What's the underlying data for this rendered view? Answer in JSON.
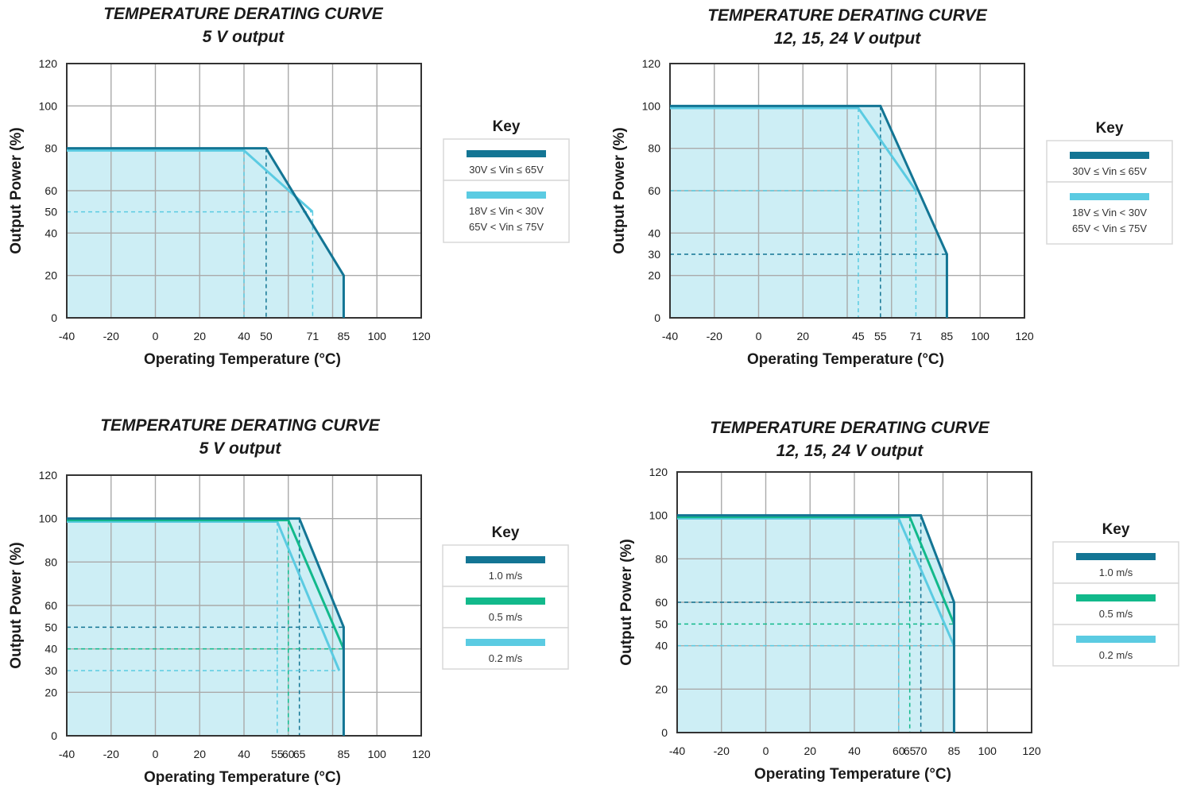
{
  "colors": {
    "fill": "#cdeef5",
    "grid": "#aaaaaa",
    "frame": "#333333",
    "key_border": "#d8d8d8"
  },
  "chart_data": [
    {
      "type": "line",
      "title": [
        "TEMPERATURE DERATING CURVE",
        "5 V output"
      ],
      "xlabel": "Operating Temperature (°C)",
      "ylabel": "Output Power (%)",
      "xlim": [
        -40,
        120
      ],
      "ylim": [
        0,
        120
      ],
      "grid": true,
      "legend_title": "Key",
      "legend_position": "right",
      "xticks": [
        "-40",
        "-20",
        "0",
        "20",
        "40",
        "50",
        "71",
        "85",
        "100",
        "120"
      ],
      "yticks": [
        "0",
        "20",
        "40",
        "50",
        "60",
        "80",
        "100",
        "120"
      ],
      "series": [
        {
          "name": "30V ≤ Vin ≤ 65V",
          "legend_lines": [
            "30V ≤ Vin ≤ 65V"
          ],
          "color": "#137594",
          "points": [
            [
              -40,
              80
            ],
            [
              50,
              80
            ],
            [
              85,
              20
            ],
            [
              85,
              0
            ]
          ],
          "guides": [
            [
              [
                50,
                80
              ],
              [
                50,
                0
              ]
            ]
          ]
        },
        {
          "name": "18V ≤ Vin < 30V / 65V < Vin ≤ 75V",
          "legend_lines": [
            "18V ≤ Vin < 30V",
            "65V < Vin ≤ 75V"
          ],
          "color": "#5bcbe2",
          "points": [
            [
              -40,
              79
            ],
            [
              40,
              79
            ],
            [
              71,
              50
            ]
          ],
          "guides": [
            [
              [
                40,
                79
              ],
              [
                40,
                0
              ]
            ],
            [
              [
                -40,
                50
              ],
              [
                71,
                50
              ]
            ],
            [
              [
                71,
                50
              ],
              [
                71,
                0
              ]
            ]
          ]
        }
      ]
    },
    {
      "type": "line",
      "title": [
        "TEMPERATURE DERATING CURVE",
        "12, 15, 24 V output"
      ],
      "xlabel": "Operating Temperature (°C)",
      "ylabel": "Output Power (%)",
      "xlim": [
        -40,
        120
      ],
      "ylim": [
        0,
        120
      ],
      "grid": true,
      "legend_title": "Key",
      "legend_position": "right",
      "xticks": [
        "-40",
        "-20",
        "0",
        "20",
        "45",
        "55",
        "71",
        "85",
        "100",
        "120"
      ],
      "yticks": [
        "0",
        "20",
        "30",
        "40",
        "60",
        "80",
        "100",
        "120"
      ],
      "series": [
        {
          "name": "30V ≤ Vin ≤ 65V",
          "legend_lines": [
            "30V ≤ Vin ≤ 65V"
          ],
          "color": "#137594",
          "points": [
            [
              -40,
              100
            ],
            [
              55,
              100
            ],
            [
              85,
              30
            ],
            [
              85,
              0
            ]
          ],
          "guides": [
            [
              [
                55,
                100
              ],
              [
                55,
                0
              ]
            ],
            [
              [
                -40,
                30
              ],
              [
                85,
                30
              ]
            ]
          ]
        },
        {
          "name": "18V ≤ Vin < 30V / 65V < Vin ≤ 75V",
          "legend_lines": [
            "18V ≤ Vin < 30V",
            "65V < Vin ≤ 75V"
          ],
          "color": "#5bcbe2",
          "points": [
            [
              -40,
              99
            ],
            [
              45,
              99
            ],
            [
              71,
              60
            ]
          ],
          "guides": [
            [
              [
                45,
                99
              ],
              [
                45,
                0
              ]
            ],
            [
              [
                -40,
                60
              ],
              [
                71,
                60
              ]
            ],
            [
              [
                71,
                60
              ],
              [
                71,
                0
              ]
            ]
          ]
        }
      ]
    },
    {
      "type": "line",
      "title": [
        "TEMPERATURE DERATING CURVE",
        "5 V output"
      ],
      "xlabel": "Operating Temperature (°C)",
      "ylabel": "Output Power (%)",
      "xlim": [
        -40,
        120
      ],
      "ylim": [
        0,
        120
      ],
      "grid": true,
      "legend_title": "Key",
      "legend_position": "right",
      "xticks": [
        "-40",
        "-20",
        "0",
        "20",
        "40",
        "55",
        "60",
        "65",
        "85",
        "100",
        "120"
      ],
      "yticks": [
        "0",
        "20",
        "30",
        "40",
        "50",
        "60",
        "80",
        "100",
        "120"
      ],
      "series": [
        {
          "name": "1.0 m/s",
          "legend_lines": [
            "1.0 m/s"
          ],
          "color": "#137594",
          "points": [
            [
              -40,
              100
            ],
            [
              65,
              100
            ],
            [
              85,
              50
            ],
            [
              85,
              0
            ]
          ],
          "guides": [
            [
              [
                65,
                100
              ],
              [
                65,
                0
              ]
            ],
            [
              [
                -40,
                50
              ],
              [
                85,
                50
              ]
            ]
          ]
        },
        {
          "name": "0.5 m/s",
          "legend_lines": [
            "0.5 m/s"
          ],
          "color": "#12b98b",
          "points": [
            [
              -40,
              99.3
            ],
            [
              60,
              99.3
            ],
            [
              85,
              40
            ]
          ],
          "guides": [
            [
              [
                60,
                99.3
              ],
              [
                60,
                0
              ]
            ],
            [
              [
                -40,
                40
              ],
              [
                85,
                40
              ]
            ]
          ]
        },
        {
          "name": "0.2 m/s",
          "legend_lines": [
            "0.2 m/s"
          ],
          "color": "#5bcbe2",
          "points": [
            [
              -40,
              98.6
            ],
            [
              55,
              98.6
            ],
            [
              83,
              30
            ]
          ],
          "guides": [
            [
              [
                55,
                98.6
              ],
              [
                55,
                0
              ]
            ],
            [
              [
                -40,
                30
              ],
              [
                83,
                30
              ]
            ]
          ]
        }
      ]
    },
    {
      "type": "line",
      "title": [
        "TEMPERATURE DERATING CURVE",
        "12, 15, 24 V output"
      ],
      "xlabel": "Operating Temperature (°C)",
      "ylabel": "Output Power (%)",
      "xlim": [
        -40,
        120
      ],
      "ylim": [
        0,
        120
      ],
      "grid": true,
      "legend_title": "Key",
      "legend_position": "right",
      "xticks": [
        "-40",
        "-20",
        "0",
        "20",
        "40",
        "60",
        "65",
        "70",
        "85",
        "100",
        "120"
      ],
      "yticks": [
        "0",
        "20",
        "40",
        "50",
        "60",
        "80",
        "100",
        "120"
      ],
      "series": [
        {
          "name": "1.0 m/s",
          "legend_lines": [
            "1.0 m/s"
          ],
          "color": "#137594",
          "points": [
            [
              -40,
              100
            ],
            [
              70,
              100
            ],
            [
              85,
              60
            ],
            [
              85,
              0
            ]
          ],
          "guides": [
            [
              [
                70,
                100
              ],
              [
                70,
                0
              ]
            ],
            [
              [
                -40,
                60
              ],
              [
                85,
                60
              ]
            ]
          ]
        },
        {
          "name": "0.5 m/s",
          "legend_lines": [
            "0.5 m/s"
          ],
          "color": "#12b98b",
          "points": [
            [
              -40,
              99.3
            ],
            [
              65,
              99.3
            ],
            [
              85,
              50
            ]
          ],
          "guides": [
            [
              [
                65,
                99.3
              ],
              [
                65,
                0
              ]
            ],
            [
              [
                -40,
                50
              ],
              [
                85,
                50
              ]
            ]
          ]
        },
        {
          "name": "0.2 m/s",
          "legend_lines": [
            "0.2 m/s"
          ],
          "color": "#5bcbe2",
          "points": [
            [
              -40,
              98.6
            ],
            [
              60,
              98.6
            ],
            [
              85,
              40
            ]
          ],
          "guides": [
            [
              [
                60,
                98.6
              ],
              [
                60,
                0
              ]
            ],
            [
              [
                -40,
                40
              ],
              [
                85,
                40
              ]
            ]
          ]
        }
      ]
    }
  ]
}
